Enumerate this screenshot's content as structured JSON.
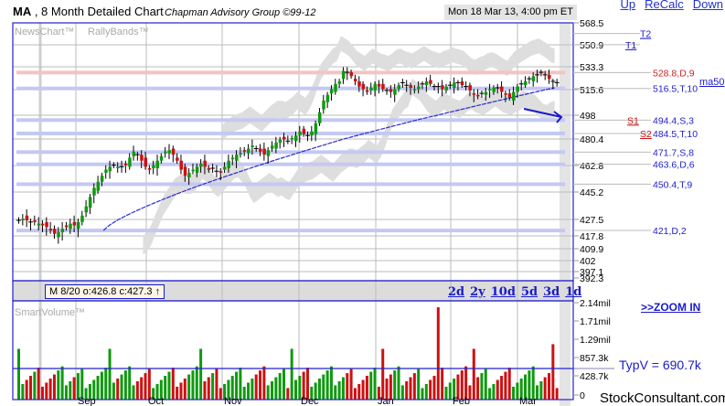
{
  "header": {
    "symbol": "MA",
    "title_rest": " , 8 Month Detailed Chart",
    "firm": "Chapman Advisory Group ©99-12",
    "date": "Mon 18 Mar 13, 4:00 pm ET",
    "links": [
      "Up",
      "ReCalc",
      "Down"
    ]
  },
  "labels": {
    "newschart": "NewsChart™",
    "rallybands": "RallyBands™",
    "smartvolume": "SmartVolume™"
  },
  "price_axis": [
    "568.5",
    "550.9",
    "533.3",
    "515.6",
    "498",
    "480.4",
    "462.8",
    "445.2",
    "427.5",
    "417.8",
    "409.9",
    "402",
    "397.1",
    "392.3"
  ],
  "volume_axis": [
    "2.14mil",
    "1.71mil",
    "1.29mil",
    "857.3k",
    "428.7k",
    "0"
  ],
  "levels": [
    {
      "label": "528.8,D,9",
      "color": "#cc2222",
      "price": 528.8
    },
    {
      "label": "516.5,T,10",
      "color": "#2222cc",
      "price": 516.5
    },
    {
      "label": "494.4,S,3",
      "color": "#2222cc",
      "price": 494.4,
      "tag": "S1"
    },
    {
      "label": "484.5,T,10",
      "color": "#2222cc",
      "price": 484.5,
      "tag": "S2"
    },
    {
      "label": "471.7,S,8",
      "color": "#2222cc",
      "price": 471.7
    },
    {
      "label": "463.6,D,6",
      "color": "#2222cc",
      "price": 463.6
    },
    {
      "label": "450.4,T,9",
      "color": "#2222cc",
      "price": 450.4
    },
    {
      "label": "421,D,2",
      "color": "#2222cc",
      "price": 421
    }
  ],
  "targets": [
    {
      "label": "T2",
      "price": 560
    },
    {
      "label": "T1",
      "price": 551
    }
  ],
  "ma50_label": "ma50",
  "ranges": [
    "2d",
    "2y",
    "10d",
    "5d",
    "3d",
    "1d"
  ],
  "zoom_in": ">>ZOOM IN",
  "info_box": "M 8/20 o:426.8 c:427.3 ↑",
  "typv": "TypV = 690.7k",
  "site": "StockConsultant.com",
  "months": [
    "Sep",
    "Oct",
    "Nov",
    "Dec",
    "Jan",
    "Feb",
    "Mar"
  ],
  "chart_data": {
    "type": "candlestick",
    "title": "MA , 8 Month Detailed Chart",
    "ylim": [
      392.3,
      568.5
    ],
    "x_months": [
      "Sep",
      "Oct",
      "Nov",
      "Dec",
      "Jan",
      "Feb",
      "Mar"
    ],
    "close_path": [
      427,
      428,
      427,
      426,
      426,
      425,
      424,
      423,
      421,
      419,
      420,
      422,
      423,
      425,
      424,
      426,
      430,
      436,
      442,
      448,
      452,
      456,
      460,
      462,
      463,
      462,
      462,
      463,
      468,
      472,
      470,
      466,
      462,
      460,
      463,
      466,
      469,
      472,
      473,
      470,
      466,
      460,
      456,
      458,
      460,
      462,
      464,
      462,
      460,
      461,
      459,
      458,
      462,
      466,
      468,
      470,
      471,
      472,
      474,
      476,
      474,
      472,
      470,
      473,
      476,
      478,
      480,
      480,
      479,
      481,
      483,
      486,
      484,
      482,
      486,
      492,
      500,
      508,
      512,
      516,
      520,
      522,
      530,
      528,
      526,
      522,
      518,
      516,
      514,
      517,
      520,
      518,
      516,
      515,
      514,
      516,
      519,
      520,
      518,
      517,
      516,
      518,
      520,
      522,
      520,
      518,
      517,
      516,
      518,
      519,
      521,
      520,
      519,
      518,
      515,
      512,
      511,
      513,
      514,
      516,
      517,
      516,
      514,
      512,
      510,
      514,
      518,
      520,
      522,
      524,
      526,
      527,
      528,
      526,
      524,
      521,
      520
    ],
    "ma50_start": 421,
    "ma50_end": 520,
    "volume_k": "approx 300-2140k, TypV 690.7k",
    "support_resistance": [
      528.8,
      516.5,
      494.4,
      484.5,
      471.7,
      463.6,
      450.4,
      421
    ]
  }
}
